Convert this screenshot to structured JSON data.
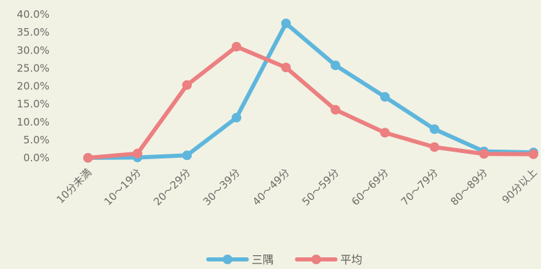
{
  "chart_data": {
    "type": "line",
    "categories": [
      "10分未満",
      "10～19分",
      "20～29分",
      "30～39分",
      "40～49分",
      "50～59分",
      "60～69分",
      "70～79分",
      "80～89分",
      "90分以上"
    ],
    "series": [
      {
        "name": "三隅",
        "color": "#5fb6dc",
        "values": [
          0.0,
          0.1,
          0.7,
          11.2,
          37.5,
          25.8,
          17.0,
          8.0,
          1.8,
          1.5
        ]
      },
      {
        "name": "平均",
        "color": "#ec7f80",
        "values": [
          0.0,
          1.2,
          20.3,
          31.0,
          25.2,
          13.4,
          7.0,
          3.0,
          1.1,
          1.0
        ]
      }
    ],
    "y_ticks": [
      "0.0%",
      "5.0%",
      "10.0%",
      "15.0%",
      "20.0%",
      "25.0%",
      "30.0%",
      "35.0%",
      "40.0%"
    ],
    "ylim": [
      0,
      40
    ],
    "grid": false,
    "legend": "bottom-center"
  }
}
